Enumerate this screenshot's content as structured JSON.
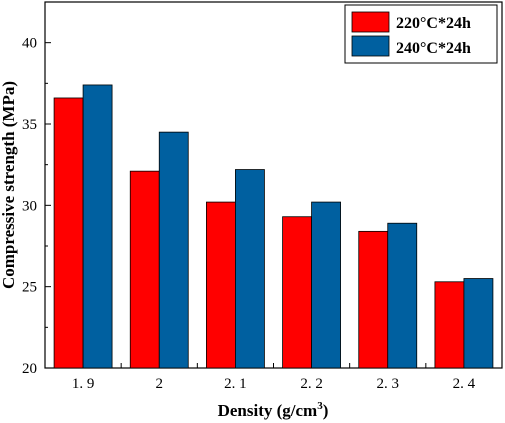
{
  "chart_data": {
    "type": "bar",
    "categories": [
      "1. 9",
      "2",
      "2. 1",
      "2. 2",
      "2. 3",
      "2. 4"
    ],
    "series": [
      {
        "name": "220°C*24h",
        "color": "#ff0000",
        "values": [
          36.6,
          32.1,
          30.2,
          29.3,
          28.4,
          25.3
        ]
      },
      {
        "name": "240°C*24h",
        "color": "#0060a0",
        "values": [
          37.4,
          34.5,
          32.2,
          30.2,
          28.9,
          25.5
        ]
      }
    ],
    "xlabel": "Density (g/cm",
    "xlabel_sup": "3",
    "xlabel_end": ")",
    "ylabel": "Compressive strength (MPa)",
    "ylim": [
      20,
      42.5
    ],
    "yticks": [
      "20",
      "25",
      "30",
      "35",
      "40"
    ],
    "legend_position": "top-right",
    "grid": false
  }
}
